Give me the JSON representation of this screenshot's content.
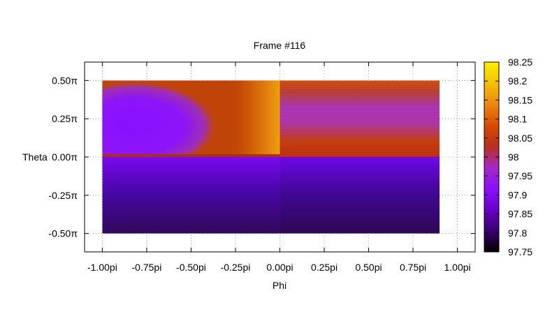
{
  "chart_data": {
    "type": "heatmap",
    "title": "Frame #116",
    "xlabel": "Phi",
    "ylabel": "Theta",
    "xlim_pi": [
      -1.1,
      1.1
    ],
    "ylim_pi": [
      -0.62,
      0.62
    ],
    "x_ticks": [
      {
        "value": -1.0,
        "label": "-1.00pi"
      },
      {
        "value": -0.75,
        "label": "-0.75pi"
      },
      {
        "value": -0.5,
        "label": "-0.50pi"
      },
      {
        "value": -0.25,
        "label": "-0.25pi"
      },
      {
        "value": 0.0,
        "label": "0.00pi"
      },
      {
        "value": 0.25,
        "label": "0.25pi"
      },
      {
        "value": 0.5,
        "label": "0.50pi"
      },
      {
        "value": 0.75,
        "label": "0.75pi"
      },
      {
        "value": 1.0,
        "label": "1.00pi"
      }
    ],
    "y_ticks": [
      {
        "value": 0.5,
        "label": "0.50π"
      },
      {
        "value": 0.25,
        "label": "0.25π"
      },
      {
        "value": 0.0,
        "label": "0.00π"
      },
      {
        "value": -0.25,
        "label": "-0.25π"
      },
      {
        "value": -0.5,
        "label": "-0.50π"
      }
    ],
    "data_extent_pi": {
      "x": [
        -1.0,
        0.9
      ],
      "y": [
        -0.5,
        0.5
      ]
    },
    "colorbar": {
      "min": 97.75,
      "max": 98.25,
      "ticks": [
        "98.25",
        "98.2",
        "98.15",
        "98.1",
        "98.05",
        "98",
        "97.95",
        "97.9",
        "97.85",
        "97.8",
        "97.75"
      ],
      "palette": [
        "#000000",
        "#3a0070",
        "#6a00c8",
        "#8a10ff",
        "#a628c4",
        "#b8301e",
        "#d84a00",
        "#ec8810",
        "#f5c000",
        "#ffee00"
      ]
    },
    "grid": true,
    "colorbar_position": "right"
  }
}
